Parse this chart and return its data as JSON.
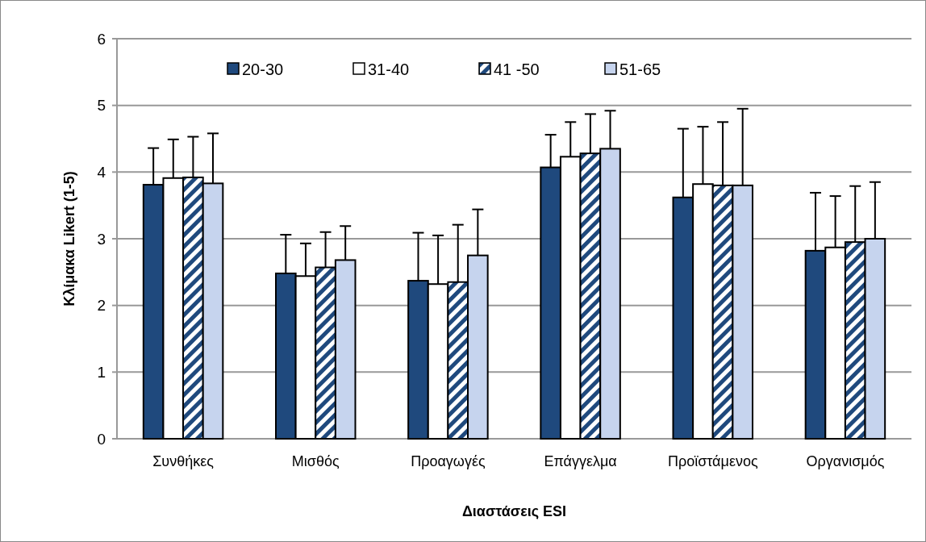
{
  "chart_data": {
    "type": "bar",
    "xlabel": "Διαστάσεις ESI",
    "ylabel": "Κλίμακα Likert (1-5)",
    "categories": [
      "Συνθήκες",
      "Μισθός",
      "Προαγωγές",
      "Επάγγελμα",
      "Προϊστάμενος",
      "Οργανισμός"
    ],
    "series": [
      {
        "name": "20-30",
        "color": "#1f497d",
        "values": [
          3.81,
          2.48,
          2.37,
          4.07,
          3.62,
          2.82
        ],
        "errors": [
          [
            3.81,
            4.36
          ],
          [
            2.48,
            3.06
          ],
          [
            2.37,
            3.09
          ],
          [
            4.07,
            4.56
          ],
          [
            3.62,
            4.65
          ],
          [
            2.82,
            3.69
          ]
        ]
      },
      {
        "name": "31-40",
        "color": "#ffffff",
        "values": [
          3.91,
          2.44,
          2.32,
          4.23,
          3.82,
          2.87
        ],
        "errors": [
          [
            3.91,
            4.49
          ],
          [
            2.44,
            2.93
          ],
          [
            2.32,
            3.05
          ],
          [
            4.23,
            4.75
          ],
          [
            3.82,
            4.68
          ],
          [
            2.87,
            3.64
          ]
        ]
      },
      {
        "name": "41 -50",
        "color": "#1f497d",
        "values": [
          3.92,
          2.57,
          2.35,
          4.28,
          3.8,
          2.95
        ],
        "errors": [
          [
            3.92,
            4.53
          ],
          [
            2.57,
            3.1
          ],
          [
            2.35,
            3.21
          ],
          [
            4.28,
            4.87
          ],
          [
            3.8,
            4.75
          ],
          [
            2.95,
            3.79
          ]
        ]
      },
      {
        "name": "51-65",
        "color": "#c6d4ee",
        "values": [
          3.83,
          2.68,
          2.75,
          4.35,
          3.8,
          3.0
        ],
        "errors": [
          [
            3.83,
            4.58
          ],
          [
            2.68,
            3.19
          ],
          [
            2.75,
            3.44
          ],
          [
            4.35,
            4.92
          ],
          [
            3.8,
            4.95
          ],
          [
            3.0,
            3.85
          ]
        ]
      }
    ],
    "ylim": [
      0,
      6
    ],
    "yticks": [
      0,
      1,
      2,
      3,
      4,
      5,
      6
    ],
    "grid": "y",
    "legend": "top"
  }
}
